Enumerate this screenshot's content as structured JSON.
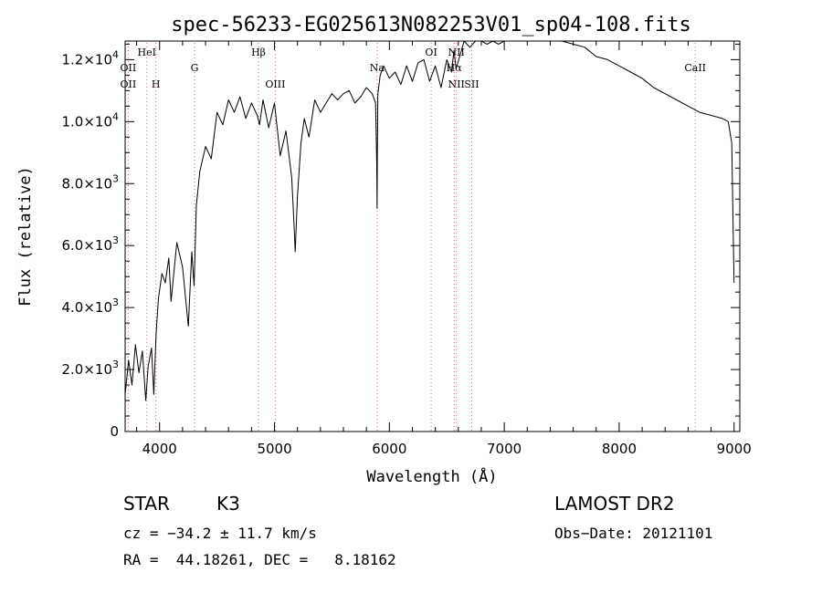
{
  "chart_data": {
    "type": "line",
    "title": "spec-56233-EG025613N082253V01_sp04-108.fits",
    "xlabel": "Wavelength (Å)",
    "ylabel": "Flux (relative)",
    "xlim": [
      3700,
      9050
    ],
    "ylim": [
      0,
      12600
    ],
    "grid": false,
    "x_ticks": [
      {
        "value": 4000,
        "label": "4000"
      },
      {
        "value": 5000,
        "label": "5000"
      },
      {
        "value": 6000,
        "label": "6000"
      },
      {
        "value": 7000,
        "label": "7000"
      },
      {
        "value": 8000,
        "label": "8000"
      },
      {
        "value": 9000,
        "label": "9000"
      }
    ],
    "y_ticks": [
      {
        "value": 0,
        "mant": "0",
        "exp": ""
      },
      {
        "value": 2000,
        "mant": "2.0×10",
        "exp": "3"
      },
      {
        "value": 4000,
        "mant": "4.0×10",
        "exp": "3"
      },
      {
        "value": 6000,
        "mant": "6.0×10",
        "exp": "3"
      },
      {
        "value": 8000,
        "mant": "8.0×10",
        "exp": "3"
      },
      {
        "value": 10000,
        "mant": "1.0×10",
        "exp": "4"
      },
      {
        "value": 12000,
        "mant": "1.2×10",
        "exp": "4"
      }
    ],
    "series": [
      {
        "x": [
          3700,
          3730,
          3760,
          3790,
          3820,
          3850,
          3880,
          3900,
          3930,
          3950,
          3970,
          3990,
          4020,
          4050,
          4080,
          4100,
          4150,
          4200,
          4250,
          4280,
          4300,
          4320,
          4350,
          4400,
          4450,
          4500,
          4550,
          4600,
          4650,
          4700,
          4750,
          4800,
          4850,
          4870,
          4900,
          4950,
          5000,
          5050,
          5100,
          5150,
          5170,
          5180,
          5200,
          5230,
          5260,
          5300,
          5350,
          5400,
          5450,
          5500,
          5550,
          5600,
          5650,
          5700,
          5750,
          5800,
          5850,
          5880,
          5890,
          5893,
          5896,
          5900,
          5920,
          5950,
          6000,
          6050,
          6100,
          6150,
          6200,
          6250,
          6300,
          6350,
          6400,
          6450,
          6500,
          6540,
          6563,
          6580,
          6620,
          6650,
          6700,
          6750,
          6800,
          6850,
          6900,
          6950,
          7000,
          7050,
          7100,
          7200,
          7300,
          7400,
          7500,
          7600,
          7700,
          7800,
          7900,
          8000,
          8100,
          8200,
          8300,
          8400,
          8500,
          8600,
          8700,
          8800,
          8900,
          8950,
          8980,
          9000
        ],
        "y": [
          1200,
          2300,
          1500,
          2800,
          1900,
          2600,
          1000,
          2100,
          2700,
          1200,
          3200,
          4300,
          5100,
          4800,
          5600,
          4200,
          6100,
          5300,
          3400,
          5800,
          4700,
          7300,
          8400,
          9200,
          8800,
          10300,
          9900,
          10700,
          10300,
          10800,
          10100,
          10600,
          10200,
          9900,
          10700,
          9800,
          10600,
          8900,
          9700,
          8200,
          6700,
          5800,
          7600,
          9300,
          10100,
          9500,
          10700,
          10300,
          10600,
          10900,
          10700,
          10900,
          11000,
          10600,
          10800,
          11100,
          10900,
          10600,
          8600,
          7200,
          9100,
          10900,
          11500,
          11800,
          11400,
          11600,
          11200,
          11800,
          11300,
          11900,
          12000,
          11300,
          11800,
          11100,
          12000,
          11600,
          12300,
          11700,
          12200,
          12600,
          12400,
          12600,
          12700,
          12500,
          12700,
          12500,
          12800,
          12600,
          12700,
          12800,
          12800,
          12600,
          12700,
          12500,
          12400,
          12100,
          12000,
          11800,
          11600,
          11400,
          11100,
          10900,
          10700,
          10500,
          10300,
          10200,
          10100,
          10000,
          9300,
          4800
        ]
      }
    ],
    "spectral_lines": [
      {
        "name": "OII",
        "wavelength": 3727,
        "row": 1
      },
      {
        "name": "OII",
        "wavelength": 3727,
        "row": 2
      },
      {
        "name": "HeI",
        "wavelength": 3889,
        "row": 0
      },
      {
        "name": "H",
        "wavelength": 3968,
        "row": 2
      },
      {
        "name": "G",
        "wavelength": 4304,
        "row": 1
      },
      {
        "name": "Hβ",
        "wavelength": 4861,
        "row": 0
      },
      {
        "name": "OIII",
        "wavelength": 5007,
        "row": 2
      },
      {
        "name": "Na",
        "wavelength": 5893,
        "row": 1
      },
      {
        "name": "OI",
        "wavelength": 6364,
        "row": 0
      },
      {
        "name": "Hα",
        "wavelength": 6563,
        "row": 1
      },
      {
        "name": "NII",
        "wavelength": 6583,
        "row": 2
      },
      {
        "name": "NII",
        "wavelength": 6583,
        "row": 0
      },
      {
        "name": "SII",
        "wavelength": 6717,
        "row": 2
      },
      {
        "name": "CaII",
        "wavelength": 8662,
        "row": 1
      }
    ]
  },
  "info": {
    "object_class": "STAR",
    "subclass": "K3",
    "survey": "LAMOST DR2",
    "redshift": "cz = −34.2 ± 11.7 km/s",
    "obs_date": "Obs−Date: 20121101",
    "coords": "RA =  44.18261, DEC =   8.18162"
  },
  "colors": {
    "spectrum": "#000000",
    "line_markers": "#e06060",
    "axis": "#000000",
    "background": "#ffffff"
  }
}
